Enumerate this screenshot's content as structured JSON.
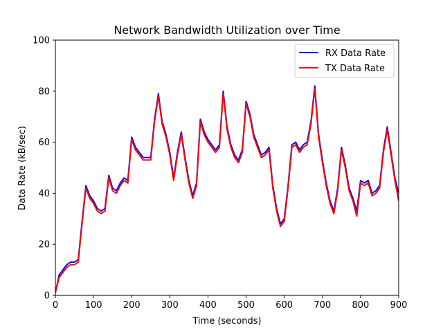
{
  "chart_data": {
    "type": "line",
    "title": "Network Bandwidth Utilization over Time",
    "xlabel": "Time (seconds)",
    "ylabel": "Data Rate (kB/sec)",
    "xlim": [
      0,
      900
    ],
    "ylim": [
      0,
      100
    ],
    "xticks": [
      0,
      100,
      200,
      300,
      400,
      500,
      600,
      700,
      800,
      900
    ],
    "yticks": [
      0,
      20,
      40,
      60,
      80,
      100
    ],
    "grid": false,
    "legend_position": "top-right",
    "x": [
      0,
      10,
      20,
      30,
      40,
      50,
      60,
      70,
      80,
      90,
      100,
      110,
      120,
      130,
      140,
      150,
      160,
      170,
      180,
      190,
      200,
      210,
      220,
      230,
      240,
      250,
      260,
      270,
      280,
      290,
      300,
      310,
      320,
      330,
      340,
      350,
      360,
      370,
      380,
      390,
      400,
      410,
      420,
      430,
      440,
      450,
      460,
      470,
      480,
      490,
      500,
      510,
      520,
      530,
      540,
      550,
      560,
      570,
      580,
      590,
      600,
      610,
      620,
      630,
      640,
      650,
      660,
      670,
      680,
      690,
      700,
      710,
      720,
      730,
      740,
      750,
      760,
      770,
      780,
      790,
      800,
      810,
      820,
      830,
      840,
      850,
      860,
      870,
      880,
      890,
      900
    ],
    "series": [
      {
        "name": "RX Data Rate",
        "color": "#0000ff",
        "values": [
          1,
          8,
          10,
          12,
          13,
          13,
          14,
          29,
          43,
          39,
          37,
          34,
          33,
          34,
          47,
          42,
          41,
          44,
          46,
          45,
          62,
          58,
          56,
          54,
          54,
          54,
          69,
          79,
          68,
          63,
          56,
          46,
          56,
          64,
          54,
          45,
          39,
          44,
          69,
          64,
          61,
          59,
          57,
          59,
          80,
          66,
          59,
          55,
          53,
          57,
          76,
          71,
          63,
          59,
          55,
          56,
          58,
          43,
          34,
          28,
          30,
          43,
          59,
          60,
          57,
          59,
          60,
          68,
          82,
          63,
          53,
          44,
          37,
          33,
          42,
          58,
          51,
          42,
          38,
          33,
          45,
          44,
          45,
          40,
          41,
          43,
          57,
          66,
          56,
          46,
          40
        ],
        "values_note": ""
      },
      {
        "name": "TX Data Rate",
        "color": "#ff0000",
        "values": [
          1,
          7,
          9,
          11,
          12,
          12,
          13,
          28,
          42,
          38,
          36,
          33,
          32,
          33,
          46,
          41,
          40,
          43,
          45,
          44,
          61,
          57,
          55,
          53,
          53,
          53,
          68,
          78,
          67,
          62,
          55,
          45,
          55,
          63,
          53,
          44,
          38,
          43,
          68,
          63,
          60,
          58,
          56,
          58,
          79,
          65,
          58,
          54,
          52,
          56,
          75,
          70,
          62,
          58,
          54,
          55,
          57,
          42,
          33,
          27,
          29,
          42,
          58,
          59,
          56,
          58,
          59,
          67,
          81,
          62,
          52,
          43,
          36,
          32,
          41,
          57,
          50,
          41,
          37,
          31,
          44,
          43,
          44,
          39,
          40,
          42,
          56,
          65,
          55,
          45,
          37
        ]
      }
    ]
  },
  "legend": {
    "items": [
      "RX Data Rate",
      "TX Data Rate"
    ]
  }
}
